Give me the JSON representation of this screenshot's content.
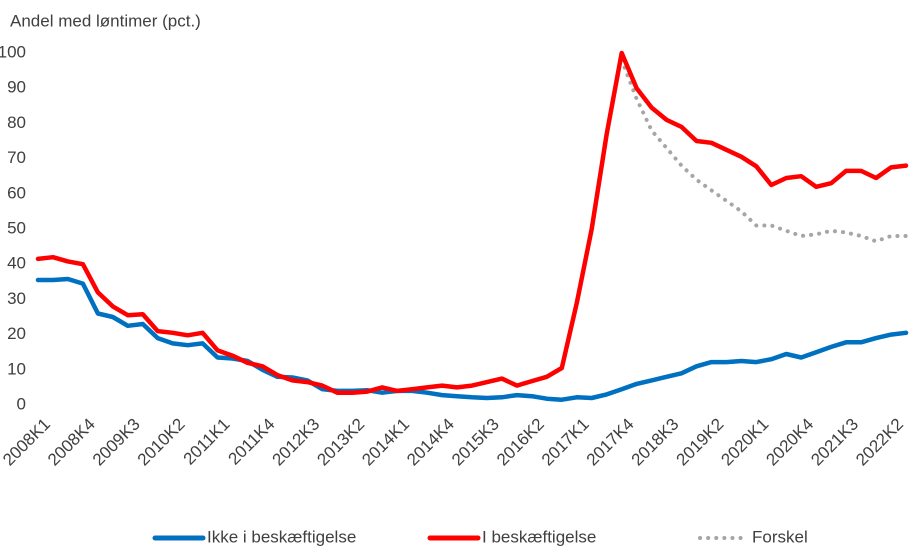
{
  "chart_data": {
    "type": "line",
    "y_label": "Andel med løntimer (pct.)",
    "categories": [
      "2008K1",
      null,
      null,
      "2008K4",
      null,
      null,
      "2009K3",
      null,
      null,
      "2010K2",
      null,
      null,
      "2011K1",
      null,
      null,
      "2011K4",
      null,
      null,
      "2012K3",
      null,
      null,
      "2013K2",
      null,
      null,
      "2014K1",
      null,
      null,
      "2014K4",
      null,
      null,
      "2015K3",
      null,
      null,
      "2016K2",
      null,
      null,
      "2017K1",
      null,
      null,
      "2017K4",
      null,
      null,
      "2018K3",
      null,
      null,
      "2019K2",
      null,
      null,
      "2020K1",
      null,
      null,
      "2020K4",
      null,
      null,
      "2021K3",
      null,
      null,
      "2022K2",
      null
    ],
    "series": [
      {
        "name": "Ikke i beskæftigelse",
        "color": "#0070c0",
        "dash": "solid",
        "values": [
          35.5,
          35.5,
          35.8,
          34.5,
          26,
          25,
          22.5,
          23,
          19,
          17.5,
          17,
          17.5,
          13.5,
          13.2,
          12.5,
          10,
          8,
          7.8,
          7,
          4.5,
          4,
          4,
          4.2,
          3.5,
          4,
          4,
          3.5,
          2.8,
          2.5,
          2.2,
          2,
          2.2,
          2.8,
          2.5,
          1.8,
          1.5,
          2.2,
          2,
          3,
          4.5,
          6,
          7,
          8,
          9,
          11,
          12.2,
          12.2,
          12.5,
          12.2,
          13,
          14.5,
          13.5,
          15,
          16.5,
          17.8,
          17.8,
          19,
          20,
          20.5
        ]
      },
      {
        "name": "I beskæftigelse",
        "color": "#ff0000",
        "dash": "solid",
        "values": [
          41.5,
          42,
          40.8,
          40,
          32,
          28,
          25.5,
          25.8,
          21,
          20.5,
          19.8,
          20.5,
          15.5,
          14,
          12,
          11,
          8.5,
          7,
          6.5,
          5.5,
          3.5,
          3.5,
          3.8,
          5,
          4,
          4.5,
          5,
          5.5,
          5,
          5.5,
          6.5,
          7.5,
          5.5,
          6.8,
          8,
          10.5,
          29,
          50,
          77,
          100,
          90,
          84.5,
          81,
          79,
          75,
          74.5,
          72.5,
          70.5,
          67.8,
          62.5,
          64.5,
          65,
          62,
          63,
          66.5,
          66.5,
          64.5,
          67.5,
          68
        ]
      },
      {
        "name": "Forskel",
        "color": "#a6a6a6",
        "dash": "dotted",
        "values": [
          null,
          null,
          null,
          null,
          null,
          null,
          null,
          null,
          null,
          null,
          null,
          null,
          null,
          null,
          null,
          null,
          null,
          null,
          null,
          null,
          null,
          null,
          null,
          null,
          null,
          null,
          null,
          null,
          null,
          null,
          null,
          null,
          null,
          null,
          null,
          null,
          null,
          null,
          null,
          98,
          87,
          78,
          73,
          68,
          64,
          61,
          58,
          55,
          51,
          51,
          49.5,
          48,
          48.5,
          49.5,
          49,
          48,
          46.5,
          48,
          48
        ]
      }
    ],
    "ylim": [
      0,
      100
    ],
    "yticks": [
      0,
      10,
      20,
      30,
      40,
      50,
      60,
      70,
      80,
      90,
      100
    ],
    "grid": false,
    "legend": "bottom"
  }
}
